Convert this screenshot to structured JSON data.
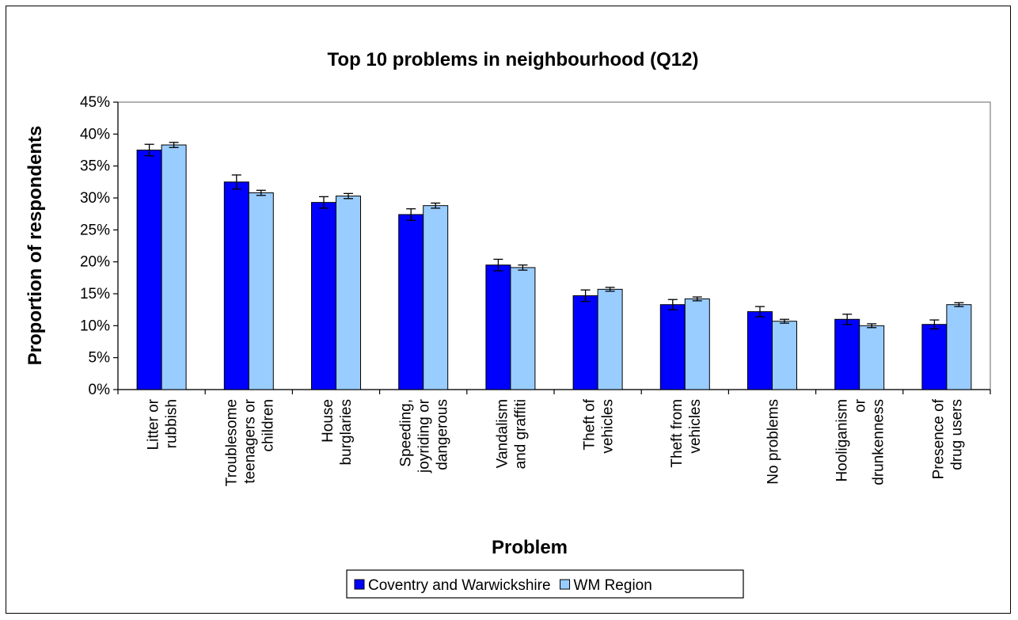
{
  "chart_data": {
    "type": "bar",
    "title": "Top 10 problems in neighbourhood (Q12)",
    "xlabel": "Problem",
    "ylabel": "Proportion of respondents",
    "ylim": [
      0,
      45
    ],
    "y_ticks": [
      "0%",
      "5%",
      "10%",
      "15%",
      "20%",
      "25%",
      "30%",
      "35%",
      "40%",
      "45%"
    ],
    "grid": false,
    "legend_position": "bottom",
    "categories": [
      [
        "Litter or",
        "rubbish"
      ],
      [
        "Troublesome",
        "teenagers or",
        "children"
      ],
      [
        "House",
        "burglaries"
      ],
      [
        "Speeding,",
        "joyriding or",
        "dangerous"
      ],
      [
        "Vandalism",
        "and graffiti"
      ],
      [
        "Theft of",
        "vehicles"
      ],
      [
        "Theft from",
        "vehicles"
      ],
      [
        "No problems"
      ],
      [
        "Hooliganism",
        "or",
        "drunkenness"
      ],
      [
        "Presence of",
        "drug users"
      ]
    ],
    "series": [
      {
        "name": "Coventry and Warwickshire",
        "color": "#0000ff",
        "values": [
          37.5,
          32.5,
          29.3,
          27.4,
          19.5,
          14.7,
          13.3,
          12.2,
          11.0,
          10.2
        ],
        "error": [
          0.9,
          1.1,
          0.9,
          0.9,
          0.9,
          0.9,
          0.8,
          0.8,
          0.8,
          0.7
        ]
      },
      {
        "name": "WM Region",
        "color": "#99ccff",
        "values": [
          38.3,
          30.8,
          30.3,
          28.8,
          19.1,
          15.7,
          14.2,
          10.7,
          10.0,
          13.3
        ],
        "error": [
          0.4,
          0.4,
          0.4,
          0.4,
          0.4,
          0.3,
          0.3,
          0.3,
          0.3,
          0.3
        ]
      }
    ]
  }
}
